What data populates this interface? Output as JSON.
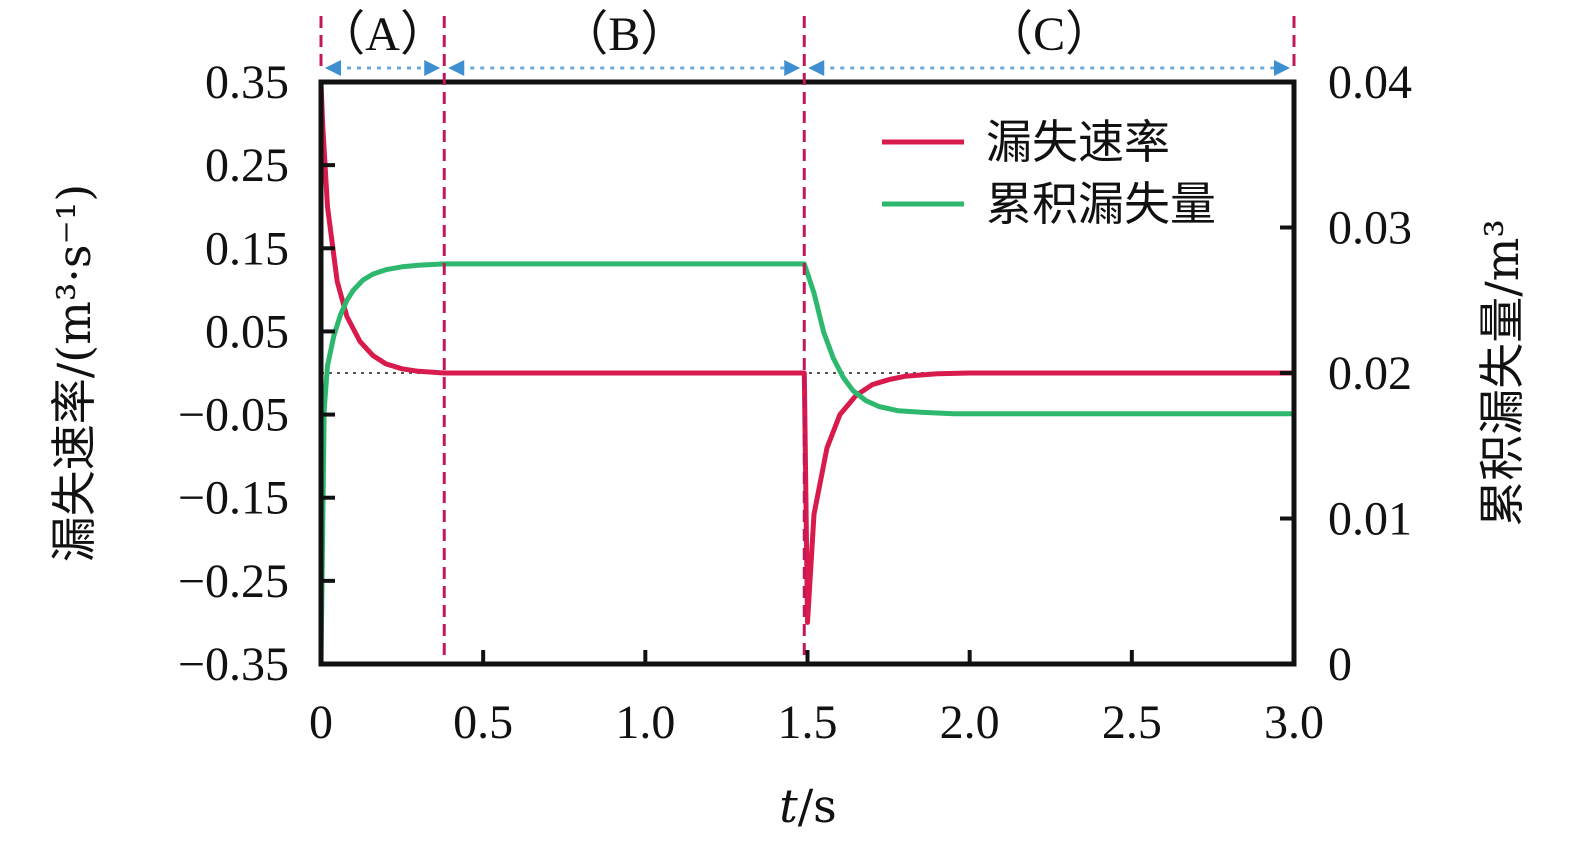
{
  "chart_data": {
    "type": "line",
    "x_axis": {
      "label_italic": "t",
      "label_unit": "/s",
      "range": [
        0,
        3.0
      ],
      "ticks": [
        0,
        0.5,
        1.0,
        1.5,
        2.0,
        2.5,
        3.0
      ],
      "tick_labels": [
        "0",
        "0.5",
        "1.0",
        "1.5",
        "2.0",
        "2.5",
        "3.0"
      ]
    },
    "y_left": {
      "label": "漏失速率/(m³·s⁻¹)",
      "range": [
        -0.35,
        0.35
      ],
      "ticks": [
        -0.35,
        -0.25,
        -0.15,
        -0.05,
        0.05,
        0.15,
        0.25,
        0.35
      ],
      "tick_labels": [
        "−0.35",
        "−0.25",
        "−0.15",
        "−0.05",
        "0.05",
        "0.15",
        "0.25",
        "0.35"
      ]
    },
    "y_right": {
      "label": "累积漏失量/m³",
      "range": [
        0,
        0.04
      ],
      "ticks": [
        0,
        0.01,
        0.02,
        0.03,
        0.04
      ],
      "tick_labels": [
        "0",
        "0.01",
        "0.02",
        "0.03",
        "0.04"
      ]
    },
    "phases": [
      {
        "label": "（A）",
        "start": 0,
        "end": 0.38
      },
      {
        "label": "（B）",
        "start": 0.38,
        "end": 1.49
      },
      {
        "label": "（C）",
        "start": 1.49,
        "end": 3.0
      }
    ],
    "boundaries": [
      0,
      0.38,
      1.49,
      3.0
    ],
    "zero_reference_line": 0,
    "legend": {
      "position": "top-right"
    },
    "series": [
      {
        "name": "漏失速率",
        "axis": "left",
        "color": "#d81b4c",
        "x": [
          0,
          0.005,
          0.02,
          0.05,
          0.08,
          0.12,
          0.16,
          0.2,
          0.25,
          0.3,
          0.38,
          0.6,
          1.0,
          1.48,
          1.49,
          1.5,
          1.52,
          1.56,
          1.6,
          1.65,
          1.7,
          1.75,
          1.8,
          1.9,
          2.0,
          2.2,
          2.5,
          3.0
        ],
        "y": [
          0.35,
          0.3,
          0.2,
          0.11,
          0.068,
          0.038,
          0.021,
          0.011,
          0.005,
          0.002,
          0.0,
          0.0,
          0.0,
          0.0,
          0.0,
          -0.3,
          -0.17,
          -0.09,
          -0.05,
          -0.027,
          -0.014,
          -0.008,
          -0.004,
          -0.001,
          0.0,
          0.0,
          0.0,
          0.0
        ]
      },
      {
        "name": "累积漏失量",
        "axis": "right",
        "color": "#2db86e",
        "x": [
          0,
          0.01,
          0.02,
          0.04,
          0.06,
          0.08,
          0.1,
          0.13,
          0.16,
          0.2,
          0.25,
          0.3,
          0.38,
          0.6,
          1.0,
          1.48,
          1.49,
          1.52,
          1.55,
          1.58,
          1.61,
          1.64,
          1.68,
          1.72,
          1.78,
          1.85,
          1.95,
          2.1,
          2.4,
          3.0
        ],
        "y": [
          0.0,
          0.0175,
          0.0205,
          0.0226,
          0.024,
          0.025,
          0.0257,
          0.0264,
          0.0268,
          0.0271,
          0.0273,
          0.0274,
          0.0275,
          0.0275,
          0.0275,
          0.0275,
          0.0275,
          0.0255,
          0.0228,
          0.021,
          0.0197,
          0.0188,
          0.0181,
          0.0177,
          0.0174,
          0.0173,
          0.0172,
          0.0172,
          0.0172,
          0.0172
        ]
      }
    ]
  }
}
